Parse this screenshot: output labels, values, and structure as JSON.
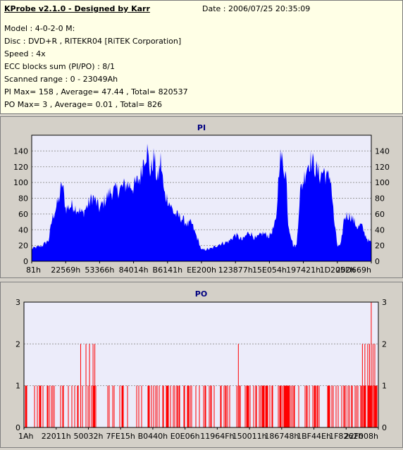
{
  "header": {
    "title": "KProbe v2.1.0 - Designed by Karr",
    "date": "Date : 2006/07/25 20:35:09",
    "lines": [
      "Model : 4-0-2-0 M:",
      "Disc : DVD+R , RITEKR04 [RiTEK Corporation]",
      "Speed : 4x",
      "ECC blocks sum (PI/PO) : 8/1",
      "Scanned range : 0 - 23049Ah",
      "PI Max= 158 , Average= 47.44 , Total= 820537",
      "PO Max= 3 , Average= 0.01 , Total= 826"
    ]
  },
  "chart_data": [
    {
      "type": "area",
      "title": "PI",
      "color": "#0000ff",
      "background": "#ececfa",
      "ylim": [
        0,
        160
      ],
      "yticks": [
        0,
        20,
        40,
        60,
        80,
        100,
        120,
        140
      ],
      "xlim": [
        0,
        1
      ],
      "xtick_labels": [
        "81h",
        "22569h",
        "53366h",
        "84014h",
        "B6141h",
        "EE200h",
        "123877h",
        "15E054h",
        "197421h",
        "1D2052h",
        "20D669h"
      ],
      "envelope": [
        [
          0.0,
          18
        ],
        [
          0.03,
          22
        ],
        [
          0.05,
          30
        ],
        [
          0.06,
          60
        ],
        [
          0.08,
          88
        ],
        [
          0.09,
          112
        ],
        [
          0.1,
          75
        ],
        [
          0.12,
          80
        ],
        [
          0.15,
          68
        ],
        [
          0.18,
          92
        ],
        [
          0.2,
          75
        ],
        [
          0.23,
          98
        ],
        [
          0.26,
          103
        ],
        [
          0.28,
          110
        ],
        [
          0.3,
          106
        ],
        [
          0.32,
          120
        ],
        [
          0.33,
          148
        ],
        [
          0.34,
          158
        ],
        [
          0.35,
          125
        ],
        [
          0.36,
          150
        ],
        [
          0.37,
          112
        ],
        [
          0.38,
          145
        ],
        [
          0.39,
          96
        ],
        [
          0.4,
          90
        ],
        [
          0.41,
          78
        ],
        [
          0.42,
          68
        ],
        [
          0.44,
          62
        ],
        [
          0.46,
          52
        ],
        [
          0.47,
          55
        ],
        [
          0.48,
          42
        ],
        [
          0.49,
          30
        ],
        [
          0.5,
          16
        ],
        [
          0.53,
          18
        ],
        [
          0.55,
          24
        ],
        [
          0.58,
          28
        ],
        [
          0.6,
          38
        ],
        [
          0.62,
          30
        ],
        [
          0.64,
          42
        ],
        [
          0.66,
          32
        ],
        [
          0.68,
          40
        ],
        [
          0.7,
          36
        ],
        [
          0.71,
          45
        ],
        [
          0.72,
          58
        ],
        [
          0.73,
          150
        ],
        [
          0.74,
          140
        ],
        [
          0.75,
          120
        ],
        [
          0.755,
          55
        ],
        [
          0.77,
          22
        ],
        [
          0.78,
          22
        ],
        [
          0.79,
          98
        ],
        [
          0.8,
          115
        ],
        [
          0.81,
          135
        ],
        [
          0.82,
          145
        ],
        [
          0.83,
          138
        ],
        [
          0.84,
          128
        ],
        [
          0.85,
          122
        ],
        [
          0.86,
          130
        ],
        [
          0.87,
          118
        ],
        [
          0.88,
          122
        ],
        [
          0.89,
          60
        ],
        [
          0.9,
          22
        ],
        [
          0.91,
          22
        ],
        [
          0.92,
          62
        ],
        [
          0.93,
          66
        ],
        [
          0.94,
          64
        ],
        [
          0.95,
          56
        ],
        [
          0.96,
          48
        ],
        [
          0.97,
          52
        ],
        [
          0.98,
          40
        ],
        [
          0.99,
          30
        ],
        [
          1.0,
          26
        ]
      ]
    },
    {
      "type": "bar",
      "title": "PO",
      "color": "#ff0000",
      "background": "#ececfa",
      "ylim": [
        0,
        3
      ],
      "yticks": [
        0,
        1,
        2,
        3
      ],
      "xlim": [
        0,
        1
      ],
      "xtick_labels": [
        "1Ah",
        "22011h",
        "50032h",
        "7FE15h",
        "B0440h",
        "E0E06h",
        "11964Fh",
        "150011h",
        "186748h",
        "1BF44Eh",
        "1F8262h",
        "22F008h"
      ],
      "spikes_value_2": [
        0.16,
        0.175,
        0.185,
        0.195,
        0.2,
        0.605,
        0.955,
        0.962,
        0.97,
        0.975,
        0.985,
        0.99
      ],
      "spikes_value_3": [
        0.98
      ]
    }
  ]
}
